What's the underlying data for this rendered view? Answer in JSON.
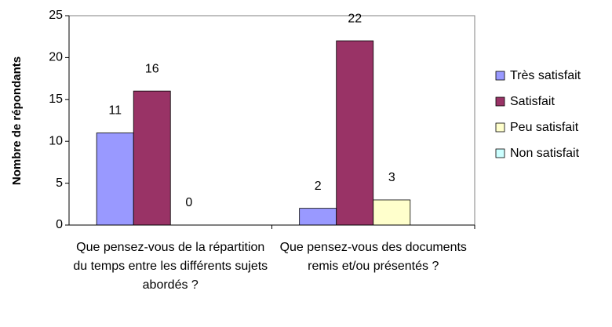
{
  "chart_data": {
    "type": "bar",
    "y_label": "Nombre de répondants",
    "categories": [
      "Que pensez-vous de la répartition du temps entre les différents sujets abordés ?",
      "Que pensez-vous des documents remis et/ou présentés ?"
    ],
    "series": [
      {
        "name": "Très satisfait",
        "color": "#9999ff",
        "values": [
          11,
          2
        ]
      },
      {
        "name": "Satisfait",
        "color": "#993366",
        "values": [
          16,
          22
        ]
      },
      {
        "name": "Peu satisfait",
        "color": "#ffffcc",
        "values": [
          0,
          3
        ]
      },
      {
        "name": "Non satisfait",
        "color": "#ccffff",
        "values": [
          null,
          null
        ]
      }
    ],
    "ylim": [
      0,
      25
    ],
    "yticks": [
      0,
      5,
      10,
      15,
      20,
      25
    ],
    "legend": "right"
  }
}
